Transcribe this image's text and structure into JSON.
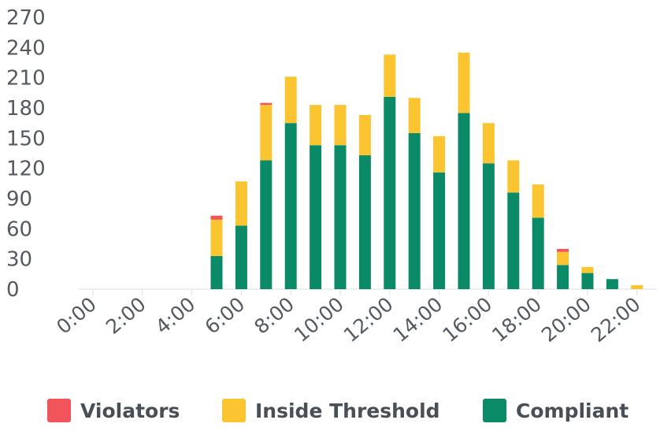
{
  "chart_data": {
    "type": "bar",
    "stacked": true,
    "categories": [
      "0:00",
      "1:00",
      "2:00",
      "3:00",
      "4:00",
      "5:00",
      "6:00",
      "7:00",
      "8:00",
      "9:00",
      "10:00",
      "11:00",
      "12:00",
      "13:00",
      "14:00",
      "15:00",
      "16:00",
      "17:00",
      "18:00",
      "19:00",
      "20:00",
      "21:00",
      "22:00"
    ],
    "x_tick_labels": [
      "0:00",
      "2:00",
      "4:00",
      "6:00",
      "8:00",
      "10:00",
      "12:00",
      "14:00",
      "16:00",
      "18:00",
      "20:00",
      "22:00"
    ],
    "y_ticks": [
      0,
      30,
      60,
      90,
      120,
      150,
      180,
      210,
      240,
      270
    ],
    "ylim": [
      0,
      270
    ],
    "grid": false,
    "legend_position": "bottom",
    "series": [
      {
        "name": "Compliant",
        "color": "#0a8a67",
        "values": [
          0,
          0,
          0,
          0,
          0,
          33,
          63,
          128,
          165,
          143,
          143,
          133,
          191,
          155,
          116,
          175,
          125,
          96,
          71,
          24,
          16,
          10,
          0
        ]
      },
      {
        "name": "Inside Threshold",
        "color": "#fbc531",
        "values": [
          0,
          0,
          0,
          0,
          0,
          36,
          44,
          55,
          46,
          40,
          40,
          40,
          42,
          35,
          36,
          60,
          40,
          32,
          33,
          13,
          6,
          0,
          4
        ]
      },
      {
        "name": "Violators",
        "color": "#f2545b",
        "values": [
          0,
          0,
          0,
          0,
          0,
          4,
          0,
          2,
          0,
          0,
          0,
          0,
          0,
          0,
          0,
          0,
          0,
          0,
          0,
          3,
          0,
          0,
          0
        ]
      }
    ]
  },
  "legend": {
    "items": [
      {
        "label": "Violators",
        "color": "#f2545b"
      },
      {
        "label": "Inside Threshold",
        "color": "#fbc531"
      },
      {
        "label": "Compliant",
        "color": "#0a8a67"
      }
    ]
  }
}
